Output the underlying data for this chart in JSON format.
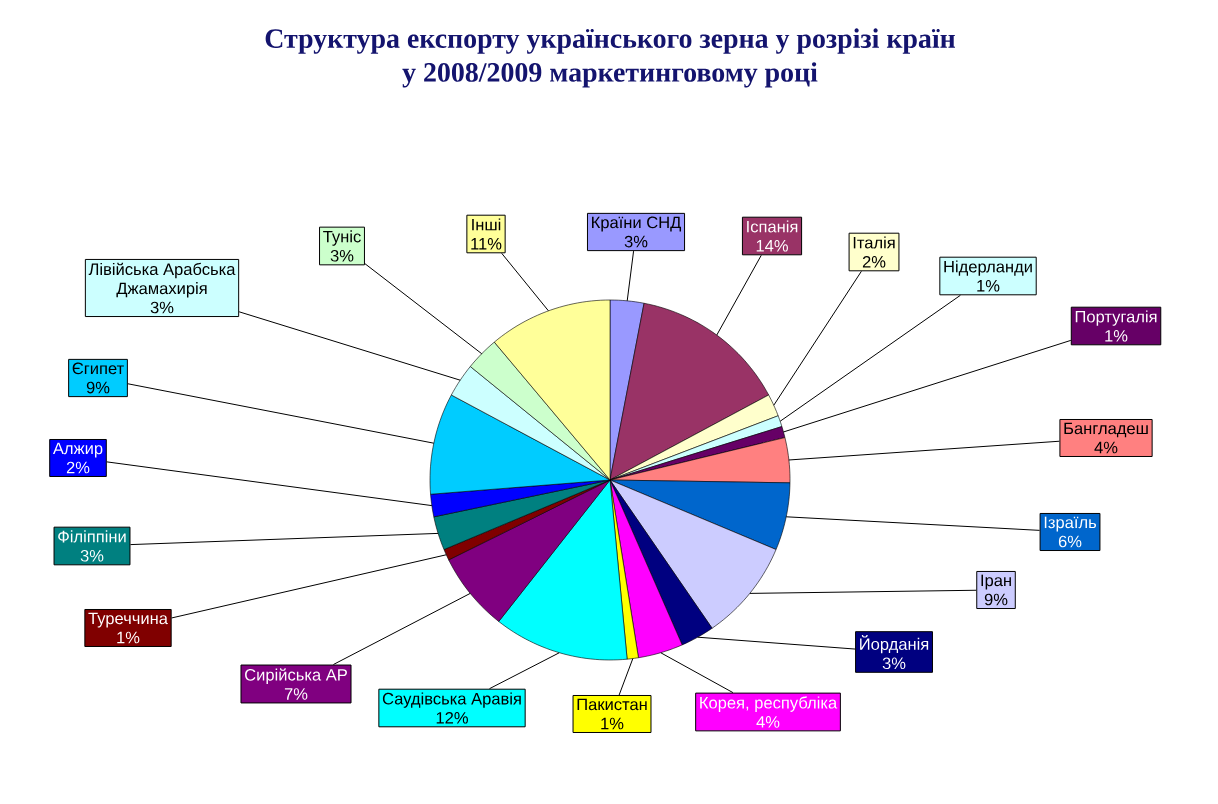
{
  "chart_data": {
    "type": "pie",
    "title": "Структура експорту українського зерна у розрізі країн у 2008/2009 маркетинговому році",
    "categories": [
      "Країни СНД",
      "Іспанія",
      "Італія",
      "Нідерланди",
      "Португалія",
      "Бангладеш",
      "Ізраїль",
      "Іран",
      "Йорданія",
      "Корея, республіка",
      "Пакистан",
      "Саудівська Аравія",
      "Сирійська АР",
      "Туреччина",
      "Філіппіни",
      "Алжир",
      "Єгипет",
      "Лівійська Арабська Джамахирія",
      "Туніс",
      "Інші"
    ],
    "values": [
      3,
      14,
      2,
      1,
      1,
      4,
      6,
      9,
      3,
      4,
      1,
      12,
      7,
      1,
      3,
      2,
      9,
      3,
      3,
      11
    ],
    "value_labels": [
      "3%",
      "14%",
      "2%",
      "1%",
      "1%",
      "4%",
      "6%",
      "9%",
      "3%",
      "4%",
      "1%",
      "12%",
      "7%",
      "1%",
      "3%",
      "2%",
      "9%",
      "3%",
      "3%",
      "11%"
    ],
    "colors": [
      "#9999ff",
      "#993366",
      "#ffffcc",
      "#ccffff",
      "#660066",
      "#ff8080",
      "#0066cc",
      "#ccccff",
      "#000080",
      "#ff00ff",
      "#ffff00",
      "#00ffff",
      "#800080",
      "#800000",
      "#008080",
      "#0000ff",
      "#00ccff",
      "#ccffff",
      "#ccffcc",
      "#ffff99"
    ],
    "legend": false
  }
}
